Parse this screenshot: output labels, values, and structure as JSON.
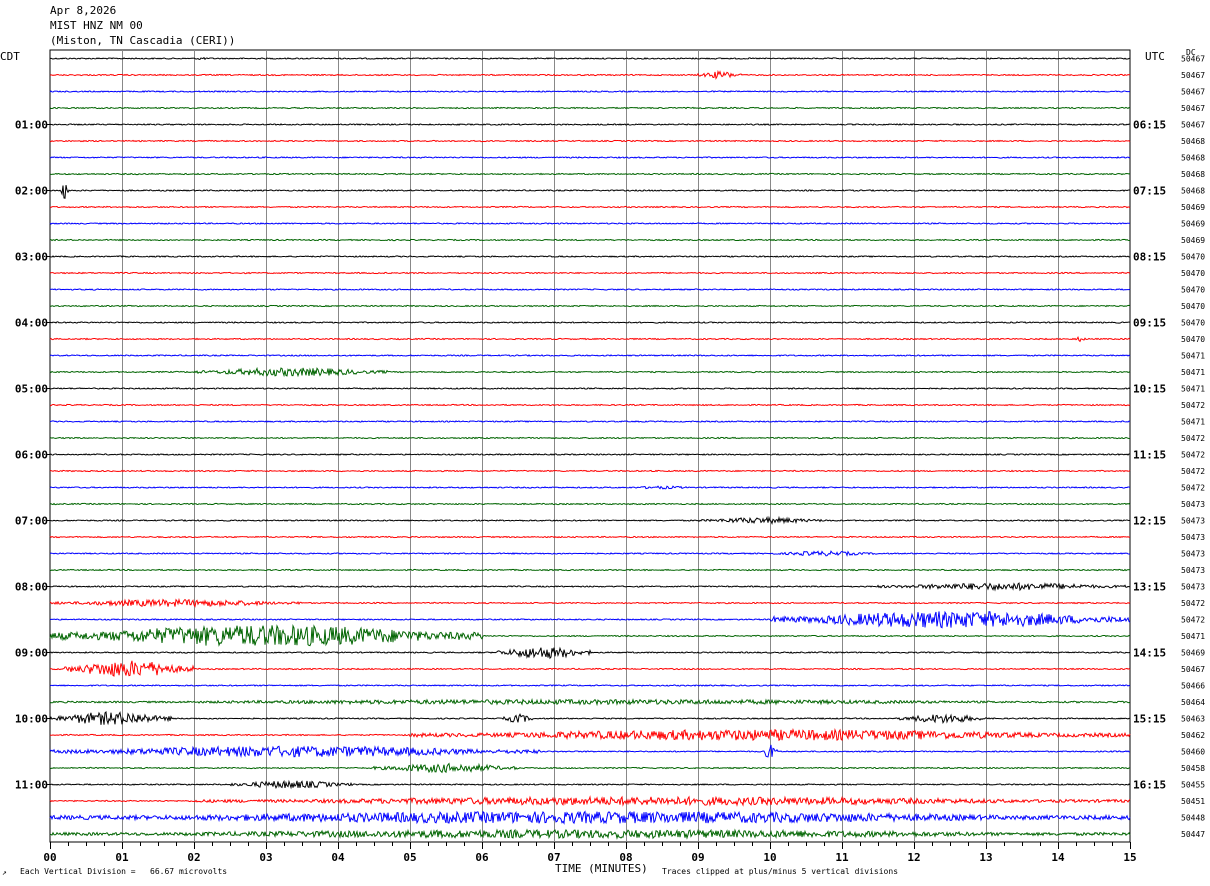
{
  "header": {
    "date": "Apr 8,2026",
    "station": "MIST HNZ NM 00",
    "location": "(Miston, TN Cascadia (CERI))"
  },
  "left_axis_label": "CDT",
  "right_axis_label": "UTC",
  "dc_header": "DC",
  "footer": {
    "scale": "Each Vertical Division =   66.67 microvolts",
    "x_axis_label": "TIME (MINUTES)",
    "clip_note": "Traces clipped at plus/minus 5 vertical divisions"
  },
  "colors": {
    "trace_cycle": [
      "#000000",
      "#ff0000",
      "#0000ff",
      "#006400"
    ],
    "grid": "#888888"
  },
  "chart_data": {
    "type": "line",
    "title": "MIST HNZ NM 00",
    "xlabel": "TIME (MINUTES)",
    "x_ticks": [
      "00",
      "01",
      "02",
      "03",
      "04",
      "05",
      "06",
      "07",
      "08",
      "09",
      "10",
      "11",
      "12",
      "13",
      "14",
      "15"
    ],
    "xlim": [
      0,
      15
    ],
    "left_time_labels": [
      {
        "row": 4,
        "label": "01:00"
      },
      {
        "row": 8,
        "label": "02:00"
      },
      {
        "row": 12,
        "label": "03:00"
      },
      {
        "row": 16,
        "label": "04:00"
      },
      {
        "row": 20,
        "label": "05:00"
      },
      {
        "row": 24,
        "label": "06:00"
      },
      {
        "row": 28,
        "label": "07:00"
      },
      {
        "row": 32,
        "label": "08:00"
      },
      {
        "row": 36,
        "label": "09:00"
      },
      {
        "row": 40,
        "label": "10:00"
      },
      {
        "row": 44,
        "label": "11:00"
      }
    ],
    "right_time_labels": [
      {
        "row": 4,
        "label": "06:15"
      },
      {
        "row": 8,
        "label": "07:15"
      },
      {
        "row": 12,
        "label": "08:15"
      },
      {
        "row": 16,
        "label": "09:15"
      },
      {
        "row": 20,
        "label": "10:15"
      },
      {
        "row": 24,
        "label": "11:15"
      },
      {
        "row": 28,
        "label": "12:15"
      },
      {
        "row": 32,
        "label": "13:15"
      },
      {
        "row": 36,
        "label": "14:15"
      },
      {
        "row": 40,
        "label": "15:15"
      },
      {
        "row": 44,
        "label": "16:15"
      }
    ],
    "dc_offsets": [
      "50467",
      "50467",
      "50467",
      "50467",
      "50467",
      "50468",
      "50468",
      "50468",
      "50468",
      "50469",
      "50469",
      "50469",
      "50470",
      "50470",
      "50470",
      "50470",
      "50470",
      "50470",
      "50471",
      "50471",
      "50471",
      "50472",
      "50471",
      "50472",
      "50472",
      "50472",
      "50472",
      "50473",
      "50473",
      "50473",
      "50473",
      "50473",
      "50473",
      "50472",
      "50472",
      "50471",
      "50469",
      "50467",
      "50466",
      "50464",
      "50463",
      "50462",
      "50460",
      "50458",
      "50455",
      "50451",
      "50448",
      "50447"
    ],
    "trace_count": 48,
    "events": [
      {
        "row": 0,
        "start": 2.0,
        "end": 2.2,
        "amp": 0.5
      },
      {
        "row": 1,
        "start": 9.0,
        "end": 9.6,
        "amp": 1.2
      },
      {
        "row": 8,
        "start": 0.15,
        "end": 0.25,
        "amp": 3.0
      },
      {
        "row": 17,
        "start": 14.2,
        "end": 14.4,
        "amp": 0.8
      },
      {
        "row": 19,
        "start": 2.0,
        "end": 4.7,
        "amp": 1.4
      },
      {
        "row": 26,
        "start": 8.0,
        "end": 9.0,
        "amp": 0.5
      },
      {
        "row": 28,
        "start": 9.0,
        "end": 10.8,
        "amp": 1.0
      },
      {
        "row": 30,
        "start": 10.0,
        "end": 11.5,
        "amp": 0.8
      },
      {
        "row": 32,
        "start": 11.5,
        "end": 15.0,
        "amp": 1.2
      },
      {
        "row": 33,
        "start": 0.0,
        "end": 3.5,
        "amp": 1.2
      },
      {
        "row": 34,
        "start": 10.0,
        "end": 15.0,
        "amp": 2.8
      },
      {
        "row": 35,
        "start": 0.0,
        "end": 6.0,
        "amp": 3.6
      },
      {
        "row": 36,
        "start": 6.2,
        "end": 7.5,
        "amp": 2.0
      },
      {
        "row": 37,
        "start": 0.2,
        "end": 2.0,
        "amp": 2.8
      },
      {
        "row": 39,
        "start": 0.0,
        "end": 15.0,
        "amp": 0.8
      },
      {
        "row": 40,
        "start": 0.0,
        "end": 1.7,
        "amp": 2.2
      },
      {
        "row": 40,
        "start": 6.3,
        "end": 6.7,
        "amp": 1.5
      },
      {
        "row": 40,
        "start": 11.8,
        "end": 13.0,
        "amp": 1.5
      },
      {
        "row": 41,
        "start": 5.0,
        "end": 15.0,
        "amp": 1.8
      },
      {
        "row": 42,
        "start": 0.0,
        "end": 6.8,
        "amp": 1.8
      },
      {
        "row": 42,
        "start": 9.9,
        "end": 10.1,
        "amp": 2.5
      },
      {
        "row": 43,
        "start": 4.5,
        "end": 6.5,
        "amp": 1.5
      },
      {
        "row": 44,
        "start": 2.5,
        "end": 4.2,
        "amp": 1.3
      },
      {
        "row": 45,
        "start": 2.0,
        "end": 15.0,
        "amp": 1.4
      },
      {
        "row": 46,
        "start": 0.0,
        "end": 15.0,
        "amp": 2.0
      },
      {
        "row": 47,
        "start": 0.0,
        "end": 15.0,
        "amp": 1.4
      }
    ]
  }
}
